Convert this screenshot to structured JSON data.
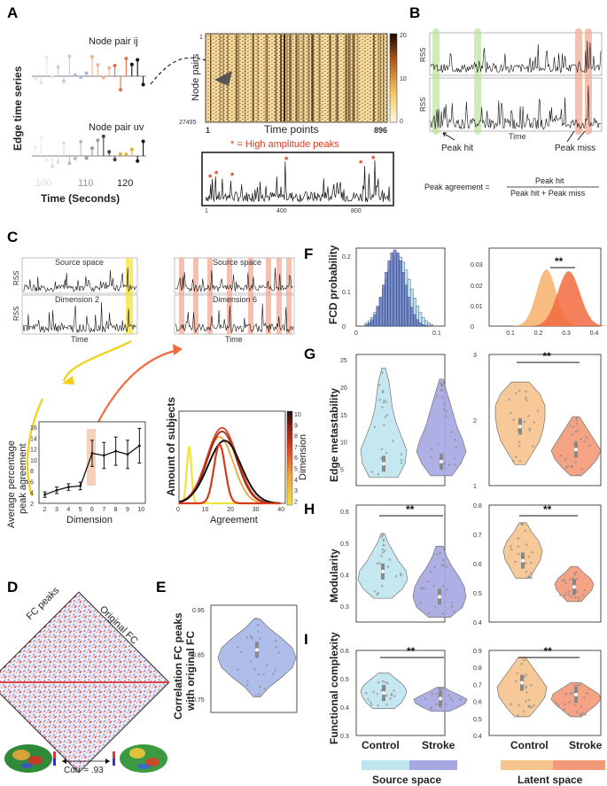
{
  "panel_labels": {
    "a": "A",
    "b": "B",
    "c": "C",
    "d": "D",
    "e": "E",
    "f": "F",
    "g": "G",
    "h": "H",
    "i": "I"
  },
  "panel_a": {
    "pair_ij": "Node pair ij",
    "pair_uv": "Node pair uv",
    "y_label": "Edge time series",
    "x_label": "Time (Seconds)",
    "x_ticks": [
      "100",
      "110",
      "120"
    ],
    "heat_y_label": "Node pairs",
    "heat_y_top": "1",
    "heat_y_bottom": "27495",
    "heat_x_left": "1",
    "heat_x_right": "896",
    "heat_x_label": "Time points",
    "colorbar_ticks": [
      "20",
      "10",
      "0"
    ],
    "peak_note": "* = High amplitude peaks",
    "rss_ticks": [
      "1",
      "400",
      "800"
    ]
  },
  "panel_b": {
    "rss1": "RSS",
    "rss2": "RSS",
    "time": "Time",
    "peak_hit": "Peak hit",
    "peak_miss": "Peak miss",
    "formula_left": "Peak agreement =",
    "formula_num": "Peak hit",
    "formula_den": "Peak hit + Peak miss"
  },
  "panel_c": {
    "source_space": "Source space",
    "dim2": "Dimension 2",
    "dim6": "Dimension 6",
    "rss": "RSS",
    "time": "Time",
    "line_ylabel1": "Average percentage",
    "line_ylabel2": "peak agreement",
    "line_xlabel": "Dimension",
    "line_yticks": [
      "16",
      "14",
      "12",
      "10",
      "8",
      "6",
      "4",
      "2"
    ],
    "line_xticks": [
      "2",
      "3",
      "4",
      "5",
      "6",
      "7",
      "8",
      "9",
      "10"
    ],
    "dist_ylabel": "Amount of subjects",
    "dist_xlabel": "Agreement",
    "dist_xticks": [
      "0",
      "10",
      "20",
      "30",
      "40"
    ],
    "cbar_ticks": [
      "10",
      "9",
      "8",
      "7",
      "6",
      "5",
      "4",
      "3",
      "2"
    ],
    "cbar_label": "Dimension"
  },
  "panel_d": {
    "fc_peaks": "FC peaks",
    "original_fc": "Original FC",
    "corr": "Corr = .93"
  },
  "panel_e": {
    "ylabel1": "Correlation FC peaks",
    "ylabel2": "with original FC",
    "yticks": [
      "0.95",
      "0.85",
      "0.75"
    ]
  },
  "panel_f": {
    "ylabel": "FCD probability",
    "left_yticks": [
      "0.2",
      "0.1",
      "0"
    ],
    "left_xticks": [
      "0",
      "0.1"
    ],
    "right_yticks": [
      "0.03",
      "0.02",
      "0.01",
      "0"
    ],
    "right_xticks": [
      "0.1",
      "0.2",
      "0.3",
      "0.4"
    ]
  },
  "panel_g": {
    "ylabel": "Edge metastability",
    "left_yticks": [
      "25",
      "20",
      "15",
      "10",
      "5"
    ],
    "right_yticks": [
      "3",
      "2",
      "1"
    ]
  },
  "panel_h": {
    "ylabel": "Modularity",
    "left_yticks": [
      "0.6",
      "0.5",
      "0.4",
      "0.3"
    ],
    "right_yticks": [
      "0.8",
      "0.7",
      "0.6",
      "0.5",
      "0.4"
    ]
  },
  "panel_i": {
    "ylabel": "Functional complexity",
    "left_yticks": [
      "0.6",
      "0.5",
      "0.4",
      "0.3"
    ],
    "right_yticks": [
      "0.9",
      "0.8",
      "0.7",
      "0.6",
      "0.5",
      "0.4"
    ]
  },
  "significance": "**",
  "groups": {
    "control": "Control",
    "stroke": "Stroke"
  },
  "legend": {
    "source": "Source space",
    "latent": "Latent space"
  },
  "colors": {
    "control_source": "#bfe6ef",
    "stroke_source": "#a6a8e3",
    "control_latent": "#f7c48e",
    "stroke_latent": "#f39a78",
    "peak_red": "#d83a1e",
    "highlight_yellow": "#f3e23a",
    "highlight_green": "#b9e39a",
    "highlight_salmon": "#f4a58c"
  },
  "chart_data": [
    {
      "type": "line",
      "title": "Average percentage peak agreement vs dimension",
      "xlabel": "Dimension",
      "ylabel": "Average percentage peak agreement",
      "x": [
        2,
        3,
        4,
        5,
        6,
        7,
        8,
        9,
        10
      ],
      "values": [
        3.6,
        4.4,
        5.0,
        5.2,
        11.2,
        10.8,
        11.6,
        11.0,
        12.6
      ],
      "error": [
        0.5,
        0.6,
        0.6,
        0.7,
        2.4,
        2.4,
        2.6,
        2.6,
        3.2
      ],
      "ylim": [
        2,
        17
      ],
      "xlim": [
        1.5,
        10.5
      ]
    },
    {
      "type": "violin",
      "title": "Correlation FC peaks with original FC",
      "ylim": [
        0.72,
        0.96
      ],
      "median": 0.86
    },
    {
      "type": "violin",
      "title": "Edge metastability (source space)",
      "categories": [
        "Control",
        "Stroke"
      ],
      "medians": [
        6.0,
        6.4
      ],
      "ylim": [
        2,
        26
      ]
    },
    {
      "type": "violin",
      "title": "Edge metastability (latent space)",
      "categories": [
        "Control",
        "Stroke"
      ],
      "medians": [
        1.9,
        1.55
      ],
      "ylim": [
        1,
        3
      ]
    },
    {
      "type": "violin",
      "title": "Modularity (source space)",
      "categories": [
        "Control",
        "Stroke"
      ],
      "medians": [
        0.41,
        0.33
      ],
      "ylim": [
        0.25,
        0.62
      ]
    },
    {
      "type": "violin",
      "title": "Modularity (latent space)",
      "categories": [
        "Control",
        "Stroke"
      ],
      "medians": [
        0.61,
        0.52
      ],
      "ylim": [
        0.4,
        0.8
      ]
    },
    {
      "type": "violin",
      "title": "Functional complexity (source space)",
      "categories": [
        "Control",
        "Stroke"
      ],
      "medians": [
        0.45,
        0.43
      ],
      "ylim": [
        0.3,
        0.6
      ]
    },
    {
      "type": "violin",
      "title": "Functional complexity (latent space)",
      "categories": [
        "Control",
        "Stroke"
      ],
      "medians": [
        0.71,
        0.64
      ],
      "ylim": [
        0.4,
        0.9
      ]
    }
  ]
}
